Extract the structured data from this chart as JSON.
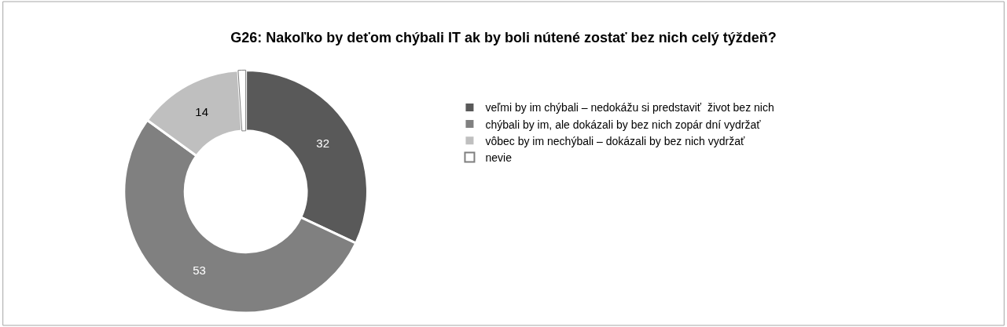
{
  "chart_data": {
    "type": "donut",
    "title": "G26: Nakoľko by deťom chýbali IT ak by boli nútené zostať bez nich celý týždeň?",
    "categories": [
      "veľmi by im chýbali – nedokážu si predstaviť  život bez nich",
      "chýbali by im, ale dokázali by bez nich zopár dní vydržať",
      "vôbec by im nechýbali – dokázali by bez nich vydržať",
      "nevie"
    ],
    "values": [
      32,
      53,
      14,
      1
    ],
    "value_labels": [
      "32",
      "53",
      "14",
      null
    ],
    "colors": [
      "#595959",
      "#808080",
      "#bfbfbf",
      "#ffffff"
    ],
    "legend": "right"
  }
}
